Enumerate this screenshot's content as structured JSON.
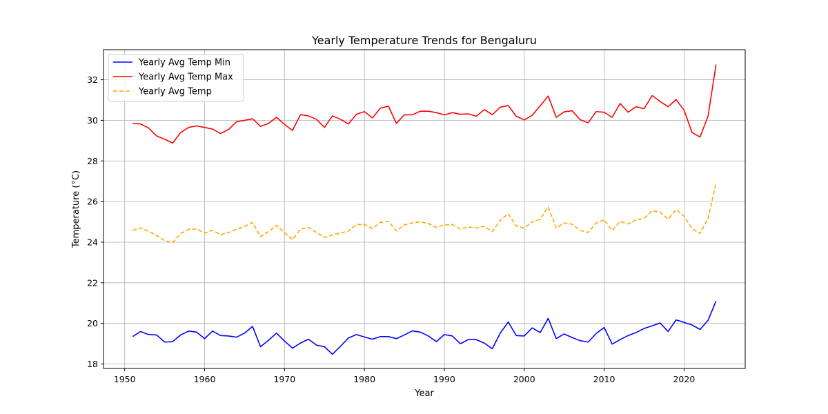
{
  "chart_data": {
    "type": "line",
    "title": "Yearly Temperature Trends for Bengaluru",
    "xlabel": "Year",
    "ylabel": "Temperature (°C)",
    "xlim": [
      1947.35,
      2027.65
    ],
    "ylim": [
      17.78,
      33.48
    ],
    "xticks": [
      1950,
      1960,
      1970,
      1980,
      1990,
      2000,
      2010,
      2020
    ],
    "yticks": [
      18,
      20,
      22,
      24,
      26,
      28,
      30,
      32
    ],
    "grid": true,
    "legend_position": "upper-left",
    "x": [
      1951,
      1952,
      1953,
      1954,
      1955,
      1956,
      1957,
      1958,
      1959,
      1960,
      1961,
      1962,
      1963,
      1964,
      1965,
      1966,
      1967,
      1968,
      1969,
      1970,
      1971,
      1972,
      1973,
      1974,
      1975,
      1976,
      1977,
      1978,
      1979,
      1980,
      1981,
      1982,
      1983,
      1984,
      1985,
      1986,
      1987,
      1988,
      1989,
      1990,
      1991,
      1992,
      1993,
      1994,
      1995,
      1996,
      1997,
      1998,
      1999,
      2000,
      2001,
      2002,
      2003,
      2004,
      2005,
      2006,
      2007,
      2008,
      2009,
      2010,
      2011,
      2012,
      2013,
      2014,
      2015,
      2016,
      2017,
      2018,
      2019,
      2020,
      2021,
      2022,
      2023,
      2024
    ],
    "series": [
      {
        "name": "Yearly Avg Temp Min",
        "color": "#0000ff",
        "dash": "solid",
        "values": [
          19.35,
          19.6,
          19.45,
          19.43,
          19.08,
          19.1,
          19.43,
          19.62,
          19.57,
          19.25,
          19.62,
          19.4,
          19.38,
          19.32,
          19.52,
          19.85,
          18.85,
          19.17,
          19.52,
          19.13,
          18.78,
          19.03,
          19.22,
          18.93,
          18.85,
          18.48,
          18.87,
          19.28,
          19.45,
          19.33,
          19.22,
          19.35,
          19.35,
          19.25,
          19.43,
          19.63,
          19.57,
          19.38,
          19.1,
          19.45,
          19.38,
          19.0,
          19.2,
          19.2,
          19.03,
          18.75,
          19.52,
          20.07,
          19.4,
          19.38,
          19.78,
          19.55,
          20.25,
          19.25,
          19.48,
          19.3,
          19.15,
          19.08,
          19.5,
          19.8,
          18.98,
          19.2,
          19.4,
          19.55,
          19.75,
          19.88,
          20.02,
          19.6,
          20.17,
          20.05,
          19.92,
          19.7,
          20.15,
          21.1
        ]
      },
      {
        "name": "Yearly Avg Temp Max",
        "color": "#ff0000",
        "dash": "solid",
        "values": [
          29.85,
          29.82,
          29.62,
          29.23,
          29.07,
          28.88,
          29.4,
          29.65,
          29.73,
          29.65,
          29.57,
          29.35,
          29.55,
          29.93,
          30.0,
          30.08,
          29.7,
          29.85,
          30.15,
          29.8,
          29.5,
          30.28,
          30.22,
          30.05,
          29.65,
          30.22,
          30.05,
          29.82,
          30.3,
          30.43,
          30.12,
          30.6,
          30.7,
          29.85,
          30.27,
          30.27,
          30.45,
          30.45,
          30.38,
          30.27,
          30.38,
          30.3,
          30.32,
          30.2,
          30.53,
          30.28,
          30.65,
          30.73,
          30.2,
          30.02,
          30.25,
          30.72,
          31.2,
          30.15,
          30.42,
          30.47,
          30.03,
          29.88,
          30.43,
          30.4,
          30.15,
          30.83,
          30.4,
          30.67,
          30.57,
          31.22,
          30.93,
          30.67,
          31.02,
          30.5,
          29.4,
          29.18,
          30.2,
          32.75
        ]
      },
      {
        "name": "Yearly Avg Temp",
        "color": "#ffa500",
        "dash": "dashed",
        "values": [
          24.58,
          24.7,
          24.53,
          24.33,
          24.08,
          23.98,
          24.42,
          24.63,
          24.65,
          24.45,
          24.58,
          24.37,
          24.47,
          24.63,
          24.78,
          24.97,
          24.27,
          24.52,
          24.83,
          24.47,
          24.13,
          24.65,
          24.72,
          24.48,
          24.23,
          24.35,
          24.45,
          24.55,
          24.87,
          24.87,
          24.67,
          24.97,
          25.03,
          24.55,
          24.85,
          24.95,
          25.0,
          24.92,
          24.73,
          24.85,
          24.87,
          24.65,
          24.75,
          24.7,
          24.78,
          24.52,
          25.08,
          25.4,
          24.8,
          24.7,
          25.0,
          25.13,
          25.73,
          24.7,
          24.95,
          24.88,
          24.58,
          24.48,
          24.95,
          25.1,
          24.57,
          25.02,
          24.9,
          25.1,
          25.17,
          25.55,
          25.48,
          25.13,
          25.6,
          25.28,
          24.67,
          24.43,
          25.17,
          26.92
        ]
      }
    ]
  }
}
